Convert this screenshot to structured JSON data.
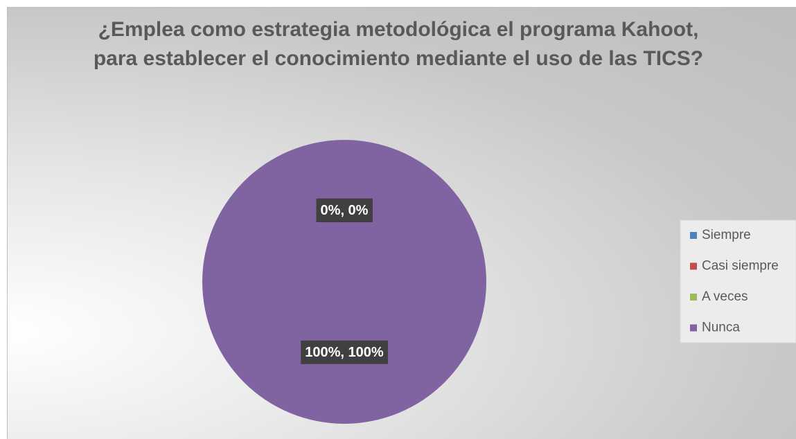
{
  "chart_data": {
    "type": "pie",
    "title": "¿Emplea como estrategia metodológica el programa Kahoot, para establecer el conocimiento mediante el uso de las TICS?",
    "categories": [
      "Siempre",
      "Casi siempre",
      "A veces",
      "Nunca"
    ],
    "values": [
      0,
      0,
      0,
      100
    ],
    "value_labels": [
      "0%, 0%",
      "0%, 0%",
      "0%, 0%",
      "100%, 100%"
    ],
    "colors": [
      "#4f81bd",
      "#c0504d",
      "#9bbb59",
      "#8064a2"
    ],
    "legend": "right"
  }
}
